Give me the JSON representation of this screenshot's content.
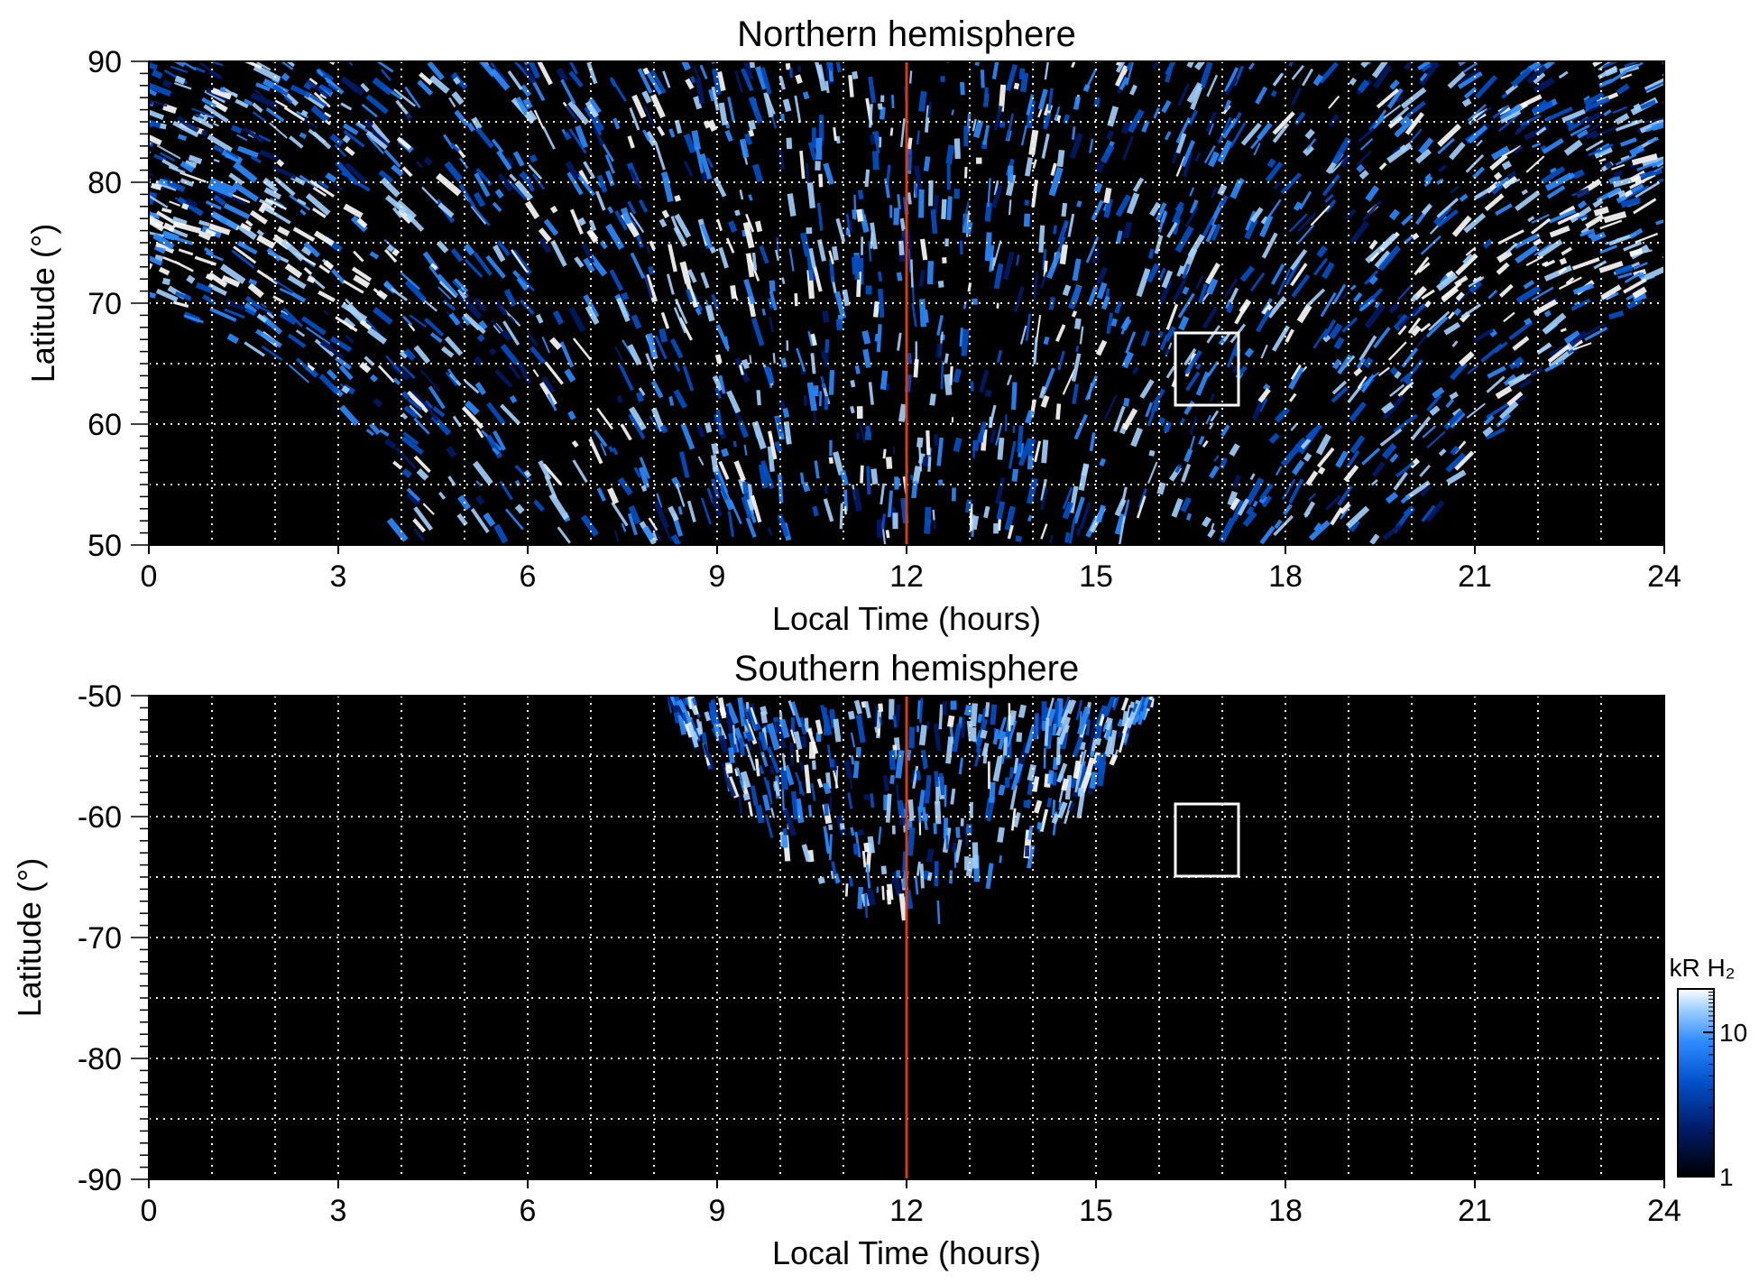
{
  "chart_data": [
    {
      "type": "heatmap",
      "title": "Northern hemisphere",
      "xlabel": "Local Time (hours)",
      "ylabel": "Latitude (°)",
      "xlim": [
        0,
        24
      ],
      "ylim": [
        50,
        90
      ],
      "xticks": [
        0,
        3,
        6,
        9,
        12,
        15,
        18,
        21,
        24
      ],
      "yticks": [
        50,
        60,
        70,
        80,
        90
      ],
      "grid": true,
      "grid_x_step": 1,
      "grid_y_step": 5,
      "noon_marker": {
        "x": 12,
        "color": "#d23c18"
      },
      "box": {
        "x": [
          16.3,
          17.3
        ],
        "y": [
          61.5,
          67.5
        ],
        "color": "#ffffff"
      },
      "coverage_lower_boundary_latitude_by_hour": [
        [
          0,
          70.5
        ],
        [
          1,
          68
        ],
        [
          2,
          65
        ],
        [
          3,
          62
        ],
        [
          3.5,
          57
        ],
        [
          4,
          50
        ],
        [
          20,
          50
        ],
        [
          21,
          57.5
        ],
        [
          22,
          63.5
        ],
        [
          23,
          68
        ],
        [
          24,
          70.5
        ]
      ],
      "bright_arc": {
        "description_lt": [
          1.5,
          22.5
        ],
        "latitude_center": 74
      }
    },
    {
      "type": "heatmap",
      "title": "Southern hemisphere",
      "xlabel": "Local Time (hours)",
      "ylabel": "Latitude (°)",
      "xlim": [
        0,
        24
      ],
      "ylim": [
        -90,
        -50
      ],
      "xticks": [
        0,
        3,
        6,
        9,
        12,
        15,
        18,
        21,
        24
      ],
      "yticks": [
        -90,
        -80,
        -70,
        -60,
        -50
      ],
      "grid": true,
      "grid_x_step": 1,
      "grid_y_step": 5,
      "noon_marker": {
        "x": 12,
        "color": "#d23c18"
      },
      "box": {
        "x": [
          16.3,
          17.3
        ],
        "y": [
          -65,
          -59
        ],
        "color": "#ffffff"
      },
      "coverage_region_latitude_by_hour": [
        [
          8.2,
          -50
        ],
        [
          9,
          -56
        ],
        [
          10,
          -62.5
        ],
        [
          11,
          -66.5
        ],
        [
          12,
          -67
        ],
        [
          12.5,
          -67.5
        ],
        [
          13.5,
          -65
        ],
        [
          14.5,
          -60
        ],
        [
          15.3,
          -55
        ],
        [
          15.9,
          -50
        ]
      ]
    }
  ],
  "colorbar": {
    "label": "kR H₂",
    "scale": "log",
    "range": [
      1,
      20
    ],
    "ticks": [
      1,
      10
    ],
    "tick_labels": [
      "1",
      "10"
    ],
    "colors": [
      "#000000",
      "#001a66",
      "#0050c8",
      "#2d8cff",
      "#a5d2ff",
      "#ffffff"
    ]
  }
}
